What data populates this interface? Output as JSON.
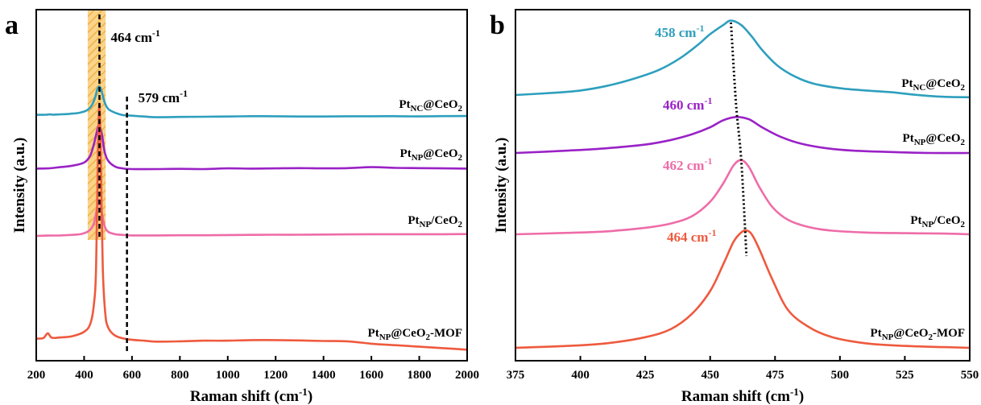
{
  "chart_data": [
    {
      "panel": "a",
      "type": "line",
      "xlabel": "Raman shift (cm⁻¹)",
      "ylabel": "Intensity (a.u.)",
      "xlim": [
        200,
        2000
      ],
      "xticks": [
        "200",
        "400",
        "600",
        "800",
        "1000",
        "1200",
        "1400",
        "1600",
        "1800",
        "2000"
      ],
      "yticks_shown": false,
      "annotations": [
        {
          "base": "464 cm",
          "sup": "-1",
          "x": 464
        },
        {
          "base": "579 cm",
          "sup": "-1",
          "x": 579
        }
      ],
      "highlight_band": {
        "x_range": [
          415,
          490
        ],
        "color": "#f7c46c"
      },
      "series": [
        {
          "name": "Pt_NC@CeO2",
          "label_base": "Pt",
          "label_sub": "NC",
          "label_rest": "@CeO",
          "label_sub2": "2",
          "color": "#2e9fbd",
          "x": [
            200,
            240,
            255,
            270,
            300,
            340,
            380,
            410,
            430,
            445,
            455,
            464,
            472,
            485,
            500,
            530,
            560,
            600,
            650,
            700,
            800,
            900,
            1000,
            1100,
            1200,
            1300,
            1400,
            1500,
            1600,
            1700,
            1800,
            1900,
            2000
          ],
          "y": [
            0.22,
            0.23,
            0.27,
            0.24,
            0.27,
            0.33,
            0.45,
            0.7,
            1.2,
            2.1,
            3.1,
            3.4,
            3.0,
            1.7,
            0.9,
            0.45,
            0.2,
            0.12,
            0.03,
            -0.05,
            -0.02,
            0.0,
            0.03,
            0.06,
            0.05,
            0.03,
            0.03,
            0.05,
            0.05,
            0.06,
            0.04,
            0.07,
            0.08
          ]
        },
        {
          "name": "Pt_NP@CeO2",
          "label_base": "Pt",
          "label_sub": "NP",
          "label_rest": "@CeO",
          "label_sub2": "2",
          "color": "#9a22c6",
          "x": [
            200,
            250,
            300,
            350,
            400,
            425,
            440,
            452,
            460,
            466,
            475,
            485,
            500,
            530,
            560,
            600,
            700,
            800,
            900,
            1000,
            1100,
            1200,
            1300,
            1400,
            1500,
            1600,
            1700,
            1800,
            1900,
            2000
          ],
          "y": [
            0.02,
            0.03,
            0.08,
            0.14,
            0.27,
            0.55,
            1.0,
            1.5,
            1.8,
            1.75,
            1.4,
            0.75,
            0.35,
            0.1,
            0.03,
            0.0,
            0.0,
            0.01,
            0.0,
            0.03,
            0.02,
            0.03,
            0.04,
            0.03,
            0.04,
            0.08,
            0.05,
            0.04,
            0.03,
            0.02
          ]
        },
        {
          "name": "Pt_NP/CeO2",
          "label_base": "Pt",
          "label_sub": "NP",
          "label_rest": "/CeO",
          "label_sub2": "2",
          "color": "#ee6ca8",
          "x": [
            200,
            250,
            300,
            350,
            390,
            420,
            440,
            452,
            460,
            466,
            474,
            485,
            500,
            530,
            560,
            600,
            700,
            800,
            900,
            1000,
            1100,
            1200,
            1300,
            1400,
            1500,
            1600,
            1700,
            1800,
            1900,
            2000
          ],
          "y": [
            0.0,
            0.02,
            0.03,
            0.06,
            0.12,
            0.3,
            0.7,
            1.5,
            2.1,
            2.0,
            1.4,
            0.6,
            0.25,
            0.1,
            0.06,
            0.03,
            0.03,
            0.04,
            0.04,
            0.05,
            0.06,
            0.07,
            0.07,
            0.08,
            0.09,
            0.1,
            0.1,
            0.1,
            0.1,
            0.11
          ]
        },
        {
          "name": "Pt_NP@CeO2-MOF",
          "label_base": "Pt",
          "label_sub": "NP",
          "label_rest": "@CeO",
          "label_sub2": "2",
          "label_tail": "-MOF",
          "color": "#ee5a3e",
          "x": [
            200,
            230,
            248,
            265,
            300,
            350,
            400,
            425,
            440,
            450,
            458,
            464,
            470,
            478,
            488,
            500,
            530,
            580,
            650,
            700,
            800,
            900,
            1000,
            1100,
            1200,
            1300,
            1400,
            1500,
            1600,
            1700,
            1800,
            1900,
            2000
          ],
          "y": [
            0.12,
            0.14,
            0.3,
            0.15,
            0.16,
            0.2,
            0.35,
            0.6,
            1.2,
            2.5,
            6.5,
            8.0,
            6.0,
            2.5,
            1.0,
            0.5,
            0.22,
            0.1,
            0.05,
            0.02,
            0.03,
            0.05,
            0.05,
            0.07,
            0.07,
            0.06,
            0.04,
            0.03,
            -0.05,
            -0.1,
            -0.15,
            -0.2,
            -0.25
          ]
        }
      ]
    },
    {
      "panel": "b",
      "type": "line",
      "xlabel": "Raman shift (cm⁻¹)",
      "ylabel": "Intensity (a.u.)",
      "xlim": [
        375,
        550
      ],
      "xticks": [
        "375",
        "400",
        "425",
        "450",
        "475",
        "500",
        "525",
        "550"
      ],
      "yticks_shown": false,
      "annotations": [
        {
          "base": "458 cm",
          "sup": "-1",
          "x": 458,
          "color": "#2e9fbd"
        },
        {
          "base": "460 cm",
          "sup": "-1",
          "x": 460,
          "color": "#9a22c6"
        },
        {
          "base": "462 cm",
          "sup": "-1",
          "x": 462,
          "color": "#ee6ca8"
        },
        {
          "base": "464 cm",
          "sup": "-1",
          "x": 464,
          "color": "#ee5a3e"
        }
      ],
      "peak_trend_line": {
        "x": [
          458,
          460,
          462,
          464
        ],
        "style": "dotted"
      },
      "series": [
        {
          "name": "Pt_NC@CeO2",
          "label_base": "Pt",
          "label_sub": "NC",
          "label_rest": "@CeO",
          "label_sub2": "2",
          "color": "#2e9fbd",
          "x": [
            375,
            390,
            400,
            410,
            420,
            430,
            438,
            445,
            450,
            455,
            458,
            462,
            466,
            470,
            476,
            483,
            490,
            500,
            510,
            520,
            530,
            540,
            550
          ],
          "y": [
            0.0,
            0.05,
            0.1,
            0.2,
            0.35,
            0.55,
            0.8,
            1.1,
            1.35,
            1.55,
            1.65,
            1.55,
            1.3,
            1.0,
            0.65,
            0.4,
            0.25,
            0.15,
            0.1,
            0.06,
            0.0,
            -0.04,
            -0.05
          ]
        },
        {
          "name": "Pt_NP@CeO2",
          "label_base": "Pt",
          "label_sub": "NP",
          "label_rest": "@CeO",
          "label_sub2": "2",
          "color": "#9a22c6",
          "x": [
            375,
            395,
            410,
            425,
            435,
            443,
            450,
            455,
            460,
            465,
            470,
            477,
            485,
            495,
            505,
            520,
            535,
            550
          ],
          "y": [
            0.0,
            0.05,
            0.1,
            0.18,
            0.28,
            0.4,
            0.55,
            0.7,
            0.77,
            0.72,
            0.55,
            0.35,
            0.2,
            0.1,
            0.05,
            0.02,
            0.0,
            0.0
          ]
        },
        {
          "name": "Pt_NP/CeO2",
          "label_base": "Pt",
          "label_sub": "NP",
          "label_rest": "/CeO",
          "label_sub2": "2",
          "color": "#ee6ca8",
          "x": [
            375,
            395,
            410,
            425,
            435,
            443,
            450,
            455,
            459,
            462,
            465,
            469,
            474,
            480,
            488,
            497,
            510,
            525,
            540,
            550
          ],
          "y": [
            0.0,
            0.04,
            0.08,
            0.18,
            0.3,
            0.5,
            0.9,
            1.4,
            1.9,
            2.05,
            1.85,
            1.3,
            0.75,
            0.4,
            0.2,
            0.1,
            0.05,
            0.03,
            0.02,
            0.0
          ]
        },
        {
          "name": "Pt_NP@CeO2-MOF",
          "label_base": "Pt",
          "label_sub": "NP",
          "label_rest": "@CeO",
          "label_sub2": "2",
          "label_tail": "-MOF",
          "color": "#ee5a3e",
          "x": [
            375,
            395,
            410,
            425,
            435,
            443,
            450,
            455,
            459,
            462,
            464,
            466,
            469,
            474,
            480,
            488,
            497,
            510,
            525,
            540,
            550
          ],
          "y": [
            0.0,
            0.05,
            0.12,
            0.28,
            0.5,
            0.9,
            1.5,
            2.2,
            2.8,
            3.05,
            3.1,
            3.0,
            2.6,
            1.8,
            1.0,
            0.55,
            0.28,
            0.12,
            0.05,
            0.02,
            0.0
          ]
        }
      ]
    }
  ]
}
